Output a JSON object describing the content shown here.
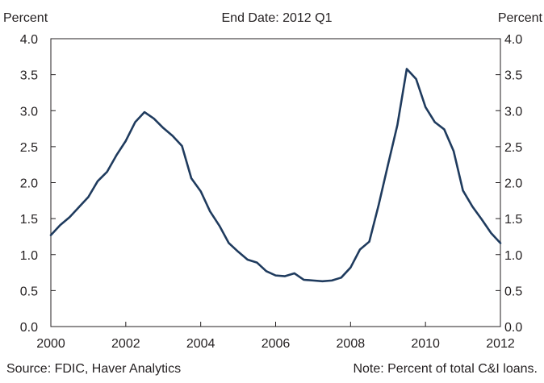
{
  "chart_data": {
    "type": "line",
    "title": "End Date: 2012 Q1",
    "ylabel_left": "Percent",
    "ylabel_right": "Percent",
    "xlim": [
      2000,
      2012
    ],
    "ylim": [
      0,
      4
    ],
    "x_ticks": [
      "2000",
      "2002",
      "2004",
      "2006",
      "2008",
      "2010",
      "2012"
    ],
    "y_ticks": [
      "0.0",
      "0.5",
      "1.0",
      "1.5",
      "2.0",
      "2.5",
      "3.0",
      "3.5",
      "4.0"
    ],
    "grid": false,
    "series": [
      {
        "color": "#1f3b5e",
        "x": [
          2000.0,
          2000.25,
          2000.5,
          2000.75,
          2001.0,
          2001.25,
          2001.5,
          2001.75,
          2002.0,
          2002.25,
          2002.5,
          2002.75,
          2003.0,
          2003.25,
          2003.5,
          2003.75,
          2004.0,
          2004.25,
          2004.5,
          2004.75,
          2005.0,
          2005.25,
          2005.5,
          2005.75,
          2006.0,
          2006.25,
          2006.5,
          2006.75,
          2007.0,
          2007.25,
          2007.5,
          2007.75,
          2008.0,
          2008.25,
          2008.5,
          2008.75,
          2009.0,
          2009.25,
          2009.5,
          2009.75,
          2010.0,
          2010.25,
          2010.5,
          2010.75,
          2011.0,
          2011.25,
          2011.5,
          2011.75,
          2012.0
        ],
        "values": [
          1.27,
          1.41,
          1.52,
          1.66,
          1.8,
          2.02,
          2.15,
          2.38,
          2.58,
          2.84,
          2.98,
          2.89,
          2.76,
          2.65,
          2.51,
          2.06,
          1.88,
          1.6,
          1.4,
          1.16,
          1.04,
          0.93,
          0.89,
          0.77,
          0.71,
          0.7,
          0.74,
          0.65,
          0.64,
          0.63,
          0.64,
          0.68,
          0.82,
          1.07,
          1.18,
          1.69,
          2.25,
          2.8,
          3.58,
          3.44,
          3.05,
          2.84,
          2.74,
          2.44,
          1.89,
          1.67,
          1.49,
          1.3,
          1.16
        ]
      }
    ]
  },
  "footer": {
    "source": "Source: FDIC, Haver Analytics",
    "note": "Note: Percent of total C&I loans."
  }
}
